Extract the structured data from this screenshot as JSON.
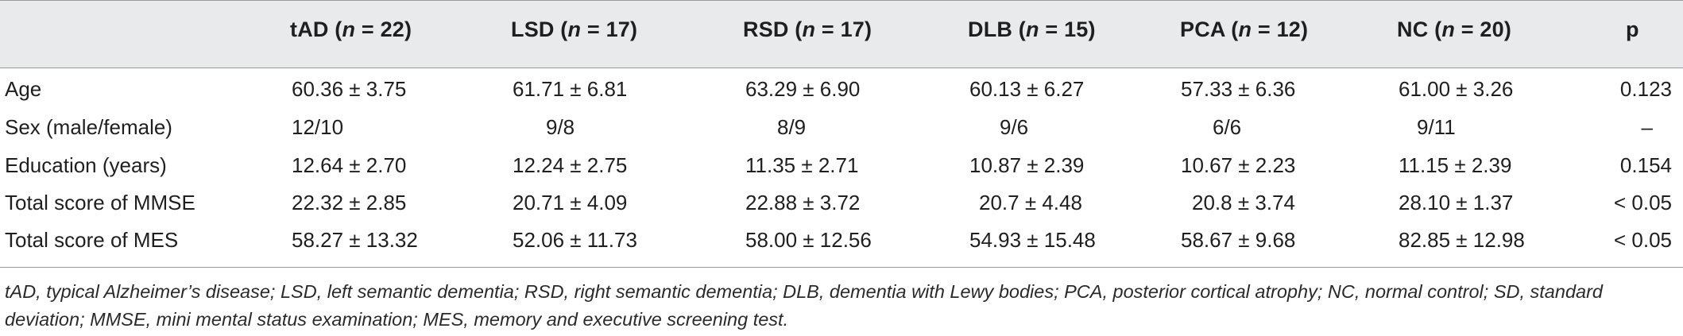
{
  "table": {
    "headers": {
      "tad": {
        "name": "tAD",
        "n": "22"
      },
      "lsd": {
        "name": "LSD",
        "n": "17"
      },
      "rsd": {
        "name": "RSD",
        "n": "17"
      },
      "dlb": {
        "name": "DLB",
        "n": "15"
      },
      "pca": {
        "name": "PCA",
        "n": "12"
      },
      "nc": {
        "name": "NC",
        "n": "20"
      },
      "p": "p"
    },
    "rows": [
      {
        "label": "Age",
        "tad": "60.36 ± 3.75",
        "lsd": "61.71 ± 6.81",
        "rsd": "63.29 ± 6.90",
        "dlb": "60.13 ± 6.27",
        "pca": "57.33 ± 6.36",
        "nc": "61.00 ± 3.26",
        "p": "0.123"
      },
      {
        "label": "Sex (male/female)",
        "tad": "12/10",
        "lsd": "9/8",
        "rsd": "8/9",
        "dlb": "9/6",
        "pca": "6/6",
        "nc": "9/11",
        "p": "–"
      },
      {
        "label": "Education (years)",
        "tad": "12.64 ± 2.70",
        "lsd": "12.24 ± 2.75",
        "rsd": "11.35 ± 2.71",
        "dlb": "10.87 ± 2.39",
        "pca": "10.67 ± 2.23",
        "nc": "11.15 ± 2.39",
        "p": "0.154"
      },
      {
        "label": "Total score of MMSE",
        "tad": "22.32 ± 2.85",
        "lsd": "20.71 ± 4.09",
        "rsd": "22.88 ± 3.72",
        "dlb": "20.7 ± 4.48",
        "pca": "20.8 ± 3.74",
        "nc": "28.10 ± 1.37",
        "p": "< 0.05"
      },
      {
        "label": "Total score of MES",
        "tad": "58.27 ± 13.32",
        "lsd": "52.06 ± 11.73",
        "rsd": "58.00 ± 12.56",
        "dlb": "54.93 ± 15.48",
        "pca": "58.67 ± 9.68",
        "nc": "82.85 ± 12.98",
        "p": "< 0.05"
      }
    ],
    "footnote": "tAD, typical Alzheimer’s disease; LSD, left semantic dementia; RSD, right semantic dementia; DLB, dementia with Lewy bodies; PCA, posterior cortical atrophy; NC, normal control; SD, standard deviation; MMSE, mini mental status examination; MES, memory and executive screening test."
  }
}
